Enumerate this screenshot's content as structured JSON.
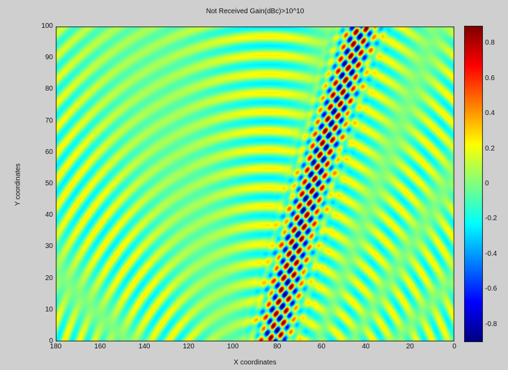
{
  "chart_data": {
    "type": "heatmap",
    "title": "Not Received Gain(dBc)>10^10",
    "xlabel": "X coordinates",
    "ylabel": "Y coordinates",
    "x_ticks": [
      "180",
      "160",
      "140",
      "120",
      "100",
      "80",
      "60",
      "40",
      "20",
      "0"
    ],
    "y_ticks": [
      "0",
      "10",
      "20",
      "30",
      "40",
      "50",
      "60",
      "70",
      "80",
      "90",
      "100"
    ],
    "xlim": [
      180,
      0
    ],
    "ylim": [
      0,
      100
    ],
    "colorbar": {
      "ticks": [
        "0.8",
        "0.6",
        "0.4",
        "0.2",
        "0",
        "-0.2",
        "-0.4",
        "-0.6",
        "-0.8"
      ],
      "range": [
        -0.9,
        0.9
      ],
      "colormap": "jet"
    },
    "band": {
      "description_points": [
        {
          "y": 0,
          "x_center": 82
        },
        {
          "y": 30,
          "x_center": 72
        },
        {
          "y": 60,
          "x_center": 60
        },
        {
          "y": 100,
          "x_center": 42
        }
      ],
      "width_x_units": 16,
      "amplitude": 0.9
    },
    "background_ring_amplitude": 0.25,
    "grid": false,
    "legend": "colorbar-right"
  },
  "colors": {
    "figure_bg": "#cfcfcf",
    "axes_bg": "#80ff80"
  }
}
